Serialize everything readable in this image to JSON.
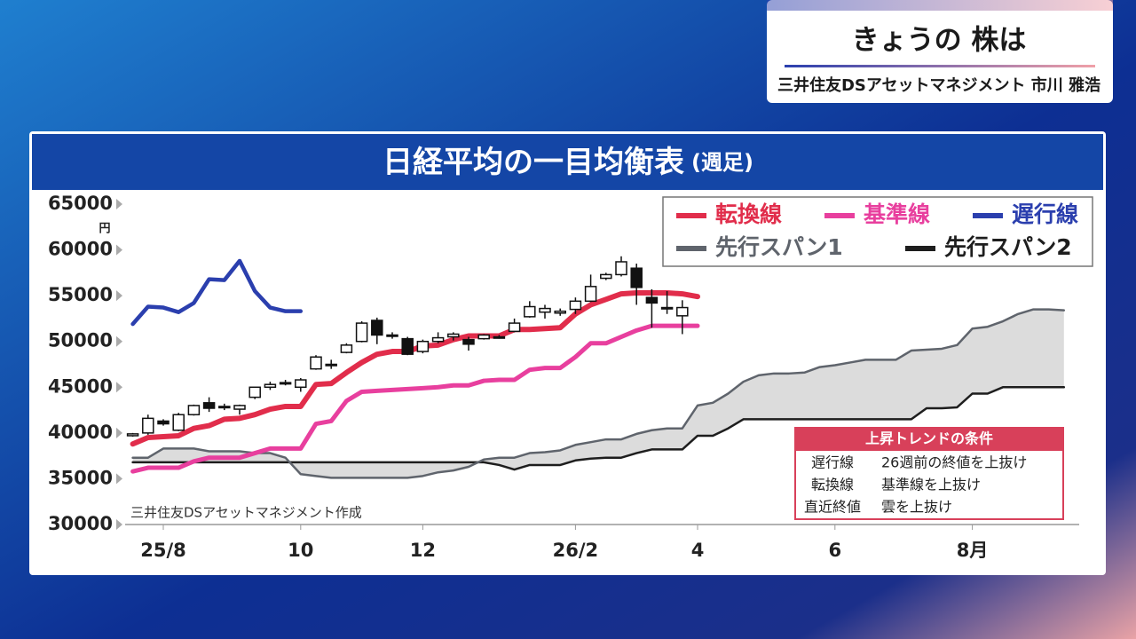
{
  "header": {
    "title": "きょうの 株は",
    "subtitle": "三井住友DSアセットマネジメント 市川 雅浩"
  },
  "chart_data": {
    "type": "ichimoku",
    "title": "日経平均の一目均衡表",
    "subtitle": "(週足)",
    "y_unit": "円",
    "source": "三井住友DSアセットマネジメント作成",
    "x": [
      0,
      1,
      2,
      3,
      4,
      5,
      6,
      7,
      8,
      9,
      10,
      11,
      12,
      13,
      14,
      15,
      16,
      17,
      18,
      19,
      20,
      21,
      22,
      23,
      24,
      25,
      26,
      27,
      28,
      29,
      30,
      31,
      32,
      33,
      34,
      35,
      36,
      37,
      38,
      39,
      40,
      41,
      42,
      43,
      44,
      45,
      46,
      47,
      48,
      49,
      50,
      51,
      52,
      53,
      54,
      55,
      56,
      57,
      58,
      59,
      60,
      61
    ],
    "xlim": [
      -0.5,
      62
    ],
    "xticks": [
      {
        "value": 2,
        "label": "25/8"
      },
      {
        "value": 11,
        "label": "10"
      },
      {
        "value": 19,
        "label": "12"
      },
      {
        "value": 29,
        "label": "26/2"
      },
      {
        "value": 37,
        "label": "4"
      },
      {
        "value": 46,
        "label": "6"
      },
      {
        "value": 55,
        "label": "8月"
      }
    ],
    "ylim": [
      30000,
      65000
    ],
    "yticks": [
      30000,
      35000,
      40000,
      45000,
      50000,
      55000,
      60000,
      65000
    ],
    "candles": {
      "up_color": "#ffffff",
      "down_color": "#111111",
      "open": [
        39700,
        40000,
        41300,
        40300,
        42000,
        43300,
        42900,
        42600,
        43900,
        45000,
        45400,
        45000,
        47000,
        47500,
        48800,
        50000,
        52300,
        50700,
        50300,
        48900,
        50000,
        50500,
        50200,
        50300,
        50500,
        51100,
        52700,
        53200,
        53100,
        53500,
        54400,
        56900,
        57300,
        58000,
        54800,
        53600,
        52800,
        null,
        null,
        null,
        null,
        null,
        null,
        null,
        null,
        null,
        null,
        null,
        null,
        null,
        null,
        null,
        null,
        null,
        null,
        null,
        null,
        null,
        null,
        null,
        null,
        null
      ],
      "high": [
        40000,
        42000,
        41500,
        42200,
        43100,
        43900,
        43200,
        43100,
        45000,
        45600,
        45800,
        46000,
        48500,
        48000,
        49800,
        52200,
        52600,
        51000,
        50500,
        50200,
        51000,
        51000,
        50500,
        50800,
        50700,
        52500,
        54400,
        54000,
        53600,
        54800,
        57300,
        57500,
        59300,
        58500,
        55700,
        55500,
        54500,
        null,
        null,
        null,
        null,
        null,
        null,
        null,
        null,
        null,
        null,
        null,
        null,
        null,
        null,
        null,
        null,
        null,
        null,
        null,
        null,
        null,
        null,
        null,
        null,
        null
      ],
      "low": [
        39600,
        39800,
        40800,
        40200,
        41900,
        42300,
        42500,
        42000,
        43700,
        44700,
        45200,
        44500,
        46900,
        47000,
        48700,
        49900,
        49700,
        50300,
        48500,
        48700,
        49800,
        50100,
        49000,
        50200,
        50300,
        51000,
        52600,
        52500,
        52800,
        53000,
        54300,
        56700,
        57100,
        54000,
        51500,
        53000,
        50800,
        null,
        null,
        null,
        null,
        null,
        null,
        null,
        null,
        null,
        null,
        null,
        null,
        null,
        null,
        null,
        null,
        null,
        null,
        null,
        null,
        null,
        null,
        null,
        null,
        null
      ],
      "close": [
        39900,
        41600,
        41000,
        42000,
        43000,
        42700,
        42900,
        43000,
        45000,
        45300,
        45500,
        45800,
        48300,
        47500,
        49600,
        52000,
        50700,
        50600,
        48600,
        50000,
        50400,
        50800,
        49700,
        50700,
        50400,
        52000,
        53800,
        53600,
        53300,
        54400,
        56000,
        57300,
        58700,
        55900,
        54200,
        53700,
        53700,
        null,
        null,
        null,
        null,
        null,
        null,
        null,
        null,
        null,
        null,
        null,
        null,
        null,
        null,
        null,
        null,
        null,
        null,
        null,
        null,
        null,
        null,
        null,
        null,
        null
      ]
    },
    "series": [
      {
        "name": "転換線",
        "color": "#e12d4b",
        "values": [
          38800,
          39500,
          39600,
          39700,
          40500,
          40800,
          41500,
          41600,
          42000,
          42600,
          42900,
          42900,
          45300,
          45400,
          46600,
          47700,
          48600,
          48900,
          48900,
          49500,
          49600,
          50200,
          50600,
          50600,
          50600,
          51300,
          51300,
          51400,
          51500,
          53000,
          54000,
          54600,
          55200,
          55300,
          55300,
          55300,
          55200,
          54900,
          null,
          null,
          null,
          null,
          null,
          null,
          null,
          null,
          null,
          null,
          null,
          null,
          null,
          null,
          null,
          null,
          null,
          null,
          null,
          null,
          null,
          null,
          null,
          null
        ]
      },
      {
        "name": "基準線",
        "color": "#e83f9e",
        "values": [
          35800,
          36200,
          36200,
          36200,
          36900,
          37300,
          37300,
          37300,
          37800,
          38300,
          38300,
          38300,
          41000,
          41300,
          43500,
          44500,
          44600,
          44700,
          44800,
          44900,
          45000,
          45200,
          45200,
          45700,
          45800,
          45800,
          46900,
          47100,
          47100,
          48300,
          49800,
          49800,
          50500,
          51200,
          51700,
          51700,
          51700,
          51700,
          null,
          null,
          null,
          null,
          null,
          null,
          null,
          null,
          null,
          null,
          null,
          null,
          null,
          null,
          null,
          null,
          null,
          null,
          null,
          null,
          null,
          null,
          null,
          null
        ]
      },
      {
        "name": "遅行線",
        "color": "#2b3fae",
        "values": [
          51900,
          53800,
          53700,
          53200,
          54200,
          56800,
          56700,
          58800,
          55500,
          53700,
          53300,
          53300,
          null,
          null,
          null,
          null,
          null,
          null,
          null,
          null,
          null,
          null,
          null,
          null,
          null,
          null,
          null,
          null,
          null,
          null,
          null,
          null,
          null,
          null,
          null,
          null,
          null,
          null,
          null,
          null,
          null,
          null,
          null,
          null,
          null,
          null,
          null,
          null,
          null,
          null,
          null,
          null,
          null,
          null,
          null,
          null,
          null,
          null,
          null,
          null,
          null,
          null
        ]
      },
      {
        "name": "先行スパン1",
        "color": "#5f646c",
        "values": [
          37300,
          37300,
          38300,
          38300,
          38300,
          38000,
          38000,
          38000,
          37800,
          37800,
          37300,
          35500,
          35300,
          35100,
          35100,
          35100,
          35100,
          35100,
          35100,
          35300,
          35700,
          35900,
          36300,
          37100,
          37300,
          37300,
          37800,
          37900,
          38100,
          38700,
          39000,
          39300,
          39300,
          39900,
          40300,
          40500,
          40500,
          43000,
          43300,
          44300,
          45600,
          46300,
          46500,
          46500,
          46600,
          47200,
          47400,
          47700,
          48000,
          48000,
          48000,
          49000,
          49100,
          49200,
          49600,
          51400,
          51600,
          52200,
          53000,
          53500,
          53500,
          53400
        ]
      },
      {
        "name": "先行スパン2",
        "color": "#1e1e1e",
        "values": [
          36800,
          36800,
          36800,
          36800,
          36800,
          36800,
          36800,
          36800,
          36800,
          36800,
          36800,
          36800,
          36800,
          36800,
          36800,
          36800,
          36800,
          36800,
          36800,
          36800,
          36800,
          36800,
          36800,
          36800,
          36500,
          36000,
          36500,
          36500,
          36500,
          37000,
          37200,
          37300,
          37300,
          37800,
          38200,
          38200,
          38200,
          39700,
          39700,
          40500,
          41500,
          41500,
          41500,
          41500,
          41500,
          41500,
          41500,
          41500,
          41500,
          41500,
          41500,
          41500,
          42700,
          42700,
          42800,
          44300,
          44300,
          45000,
          45000,
          45000,
          45000,
          45000
        ]
      }
    ],
    "cloud_color": "#dcdcdc",
    "conditions": {
      "title": "上昇トレンドの条件",
      "rows": [
        [
          "遅行線",
          "26週前の終値を上抜け"
        ],
        [
          "転換線",
          "基準線を上抜け"
        ],
        [
          "直近終値",
          "雲を上抜け"
        ]
      ]
    }
  }
}
